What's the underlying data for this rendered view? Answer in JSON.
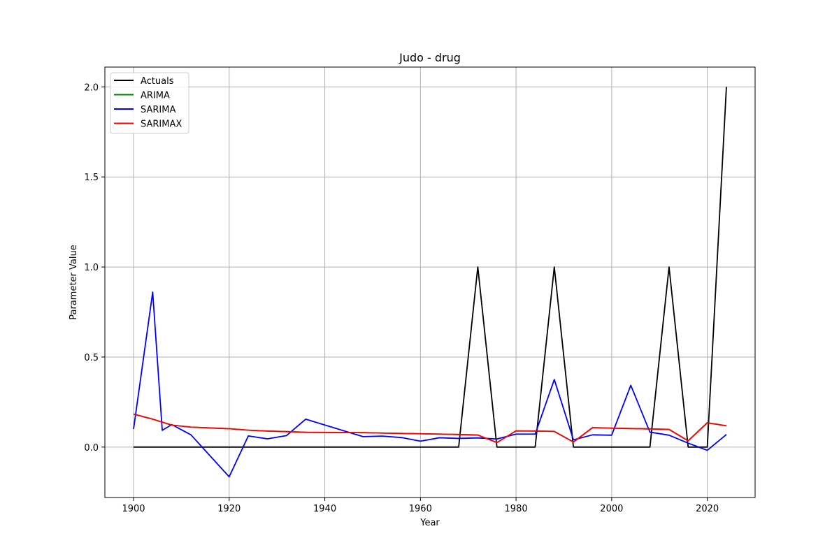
{
  "chart_data": {
    "type": "line",
    "title": "Judo - drug",
    "xlabel": "Year",
    "ylabel": "Parameter Value",
    "xlim": [
      1894,
      2030
    ],
    "ylim": [
      -0.28,
      2.11
    ],
    "xticks": [
      1900,
      1920,
      1940,
      1960,
      1980,
      2000,
      2020
    ],
    "xtick_labels": [
      "1900",
      "1920",
      "1940",
      "1960",
      "1980",
      "2000",
      "2020"
    ],
    "yticks": [
      0.0,
      0.5,
      1.0,
      1.5,
      2.0
    ],
    "ytick_labels": [
      "0.0",
      "0.5",
      "1.0",
      "1.5",
      "2.0"
    ],
    "grid": true,
    "legend_position": "top-left",
    "series": [
      {
        "name": "Actuals",
        "color": "#000000",
        "x": [
          1900,
          1968,
          1972,
          1976,
          1984,
          1988,
          1992,
          2008,
          2012,
          2016,
          2020,
          2024
        ],
        "y": [
          0,
          0,
          1,
          0,
          0,
          1,
          0,
          0,
          1,
          0,
          0,
          2
        ]
      },
      {
        "name": "ARIMA",
        "color": "#008000",
        "x": [
          1900,
          1904,
          1908,
          1912,
          1920,
          1924,
          1928,
          1932,
          1936,
          1948,
          1952,
          1956,
          1960,
          1964,
          1968,
          1972,
          1976,
          1980,
          1984,
          1988,
          1992,
          1996,
          2000,
          2004,
          2008,
          2012,
          2016,
          2020,
          2024
        ],
        "y": [
          0.183,
          0.155,
          0.122,
          0.111,
          0.102,
          0.094,
          0.089,
          0.086,
          0.082,
          0.08,
          0.078,
          0.076,
          0.074,
          0.072,
          0.07,
          0.067,
          0.025,
          0.09,
          0.089,
          0.087,
          0.028,
          0.108,
          0.105,
          0.103,
          0.101,
          0.098,
          0.035,
          0.135,
          0.118
        ]
      },
      {
        "name": "SARIMA",
        "color": "#0000ff",
        "x": [
          1900,
          1904,
          1906,
          1908,
          1912,
          1920,
          1924,
          1928,
          1932,
          1936,
          1948,
          1952,
          1956,
          1960,
          1964,
          1968,
          1972,
          1976,
          1980,
          1984,
          1988,
          1992,
          1996,
          2000,
          2004,
          2008,
          2012,
          2016,
          2020,
          2024
        ],
        "y": [
          0.1,
          0.86,
          0.093,
          0.125,
          0.068,
          -0.165,
          0.062,
          0.046,
          0.064,
          0.155,
          0.058,
          0.061,
          0.053,
          0.033,
          0.052,
          0.048,
          0.051,
          0.045,
          0.072,
          0.072,
          0.375,
          0.04,
          0.068,
          0.066,
          0.343,
          0.083,
          0.066,
          0.022,
          -0.018,
          0.07
        ]
      },
      {
        "name": "SARIMAX",
        "color": "#ff0000",
        "x": [
          1900,
          1904,
          1908,
          1912,
          1920,
          1924,
          1928,
          1932,
          1936,
          1948,
          1952,
          1956,
          1960,
          1964,
          1968,
          1972,
          1976,
          1980,
          1984,
          1988,
          1992,
          1996,
          2000,
          2004,
          2008,
          2012,
          2016,
          2020,
          2024
        ],
        "y": [
          0.183,
          0.155,
          0.122,
          0.111,
          0.102,
          0.094,
          0.089,
          0.086,
          0.082,
          0.08,
          0.078,
          0.076,
          0.074,
          0.072,
          0.07,
          0.067,
          0.025,
          0.09,
          0.089,
          0.087,
          0.028,
          0.108,
          0.105,
          0.103,
          0.101,
          0.098,
          0.035,
          0.135,
          0.118
        ]
      }
    ]
  }
}
